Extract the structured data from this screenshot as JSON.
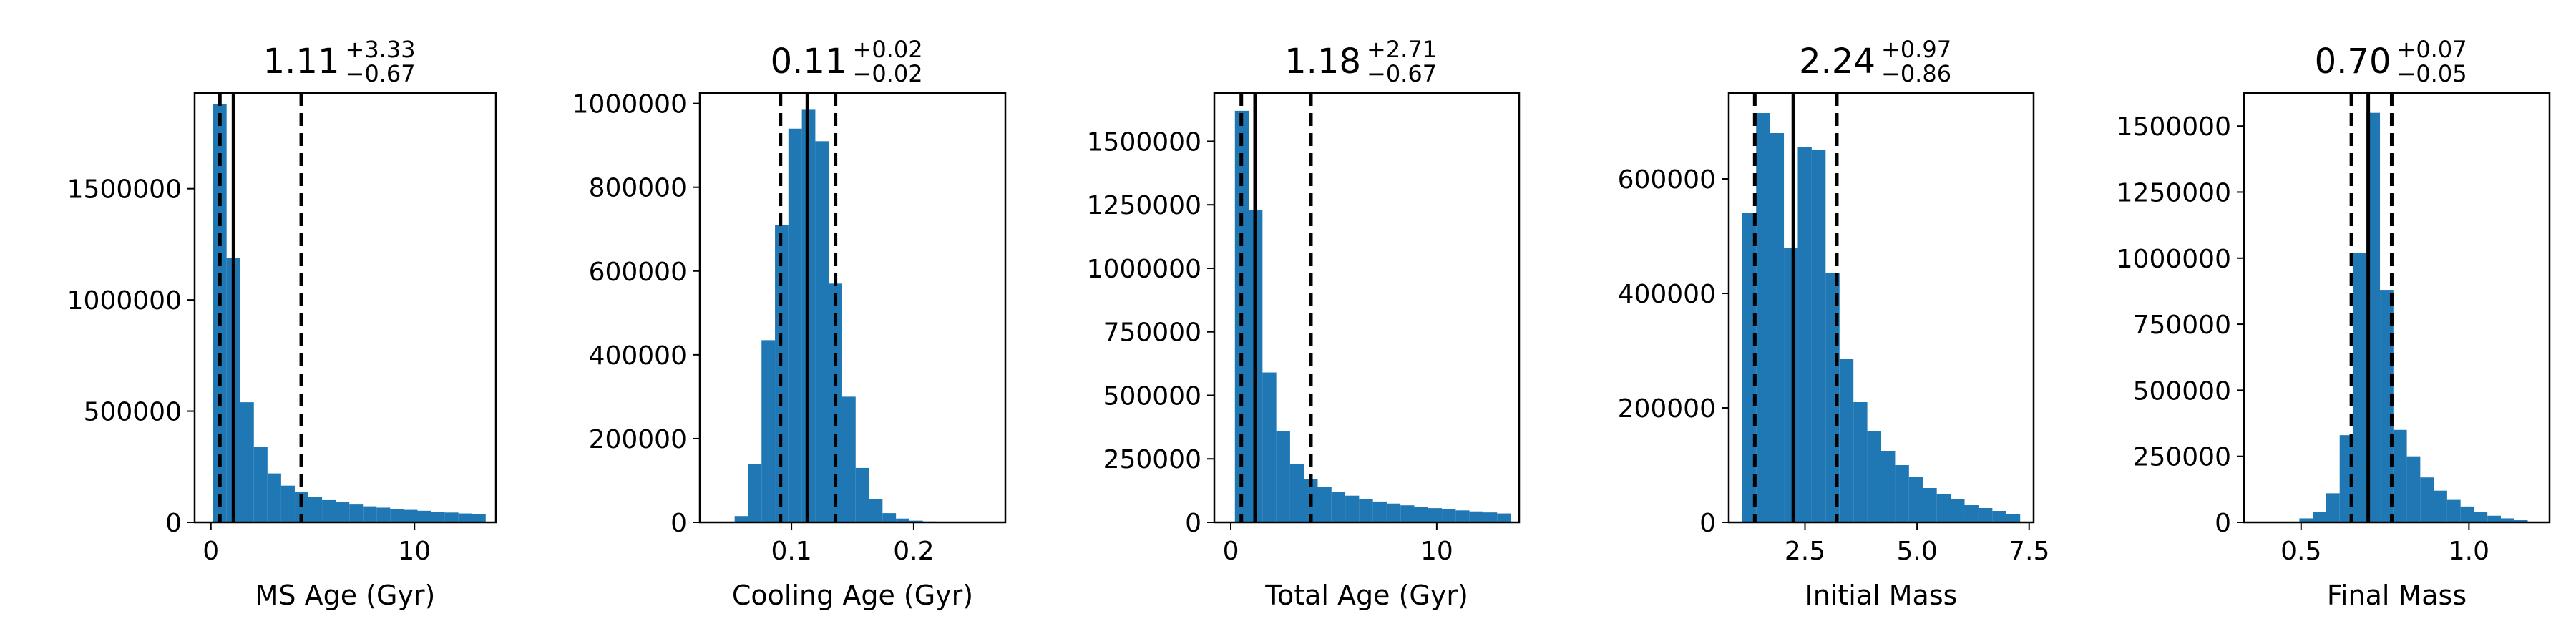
{
  "colors": {
    "bars": "#1f77b4",
    "median_line": "#000000",
    "quantile_line": "#000000"
  },
  "chart_data": [
    {
      "type": "bar",
      "title": {
        "value": "1.11",
        "upper": "+3.33",
        "lower": "−0.67"
      },
      "xlabel": "MS Age (Gyr)",
      "xlim": [
        -0.8,
        14
      ],
      "ylim": [
        0,
        1930000
      ],
      "xticks": [
        {
          "value": 0,
          "label": "0"
        },
        {
          "value": 10,
          "label": "10"
        }
      ],
      "yticks": [
        {
          "value": 0,
          "label": "0"
        },
        {
          "value": 500000,
          "label": "500000"
        },
        {
          "value": 1000000,
          "label": "1000000"
        },
        {
          "value": 1500000,
          "label": "1500000"
        }
      ],
      "bin_edges": [
        0.1,
        0.77,
        1.44,
        2.11,
        2.78,
        3.45,
        4.12,
        4.79,
        5.46,
        6.13,
        6.8,
        7.47,
        8.14,
        8.81,
        9.48,
        10.15,
        10.82,
        11.49,
        12.16,
        12.83,
        13.5
      ],
      "counts": [
        1880000,
        1190000,
        540000,
        340000,
        220000,
        165000,
        135000,
        115000,
        100000,
        90000,
        80000,
        72000,
        66000,
        60000,
        56000,
        52000,
        48000,
        44000,
        40000,
        36000
      ],
      "median": 1.11,
      "quantiles": [
        0.44,
        4.44
      ]
    },
    {
      "type": "bar",
      "title": {
        "value": "0.11",
        "upper": "+0.02",
        "lower": "−0.02"
      },
      "xlabel": "Cooling Age (Gyr)",
      "xlim": [
        0.025,
        0.275
      ],
      "ylim": [
        0,
        1025000
      ],
      "xticks": [
        {
          "value": 0.1,
          "label": "0.1"
        },
        {
          "value": 0.2,
          "label": "0.2"
        }
      ],
      "yticks": [
        {
          "value": 0,
          "label": "0"
        },
        {
          "value": 200000,
          "label": "200000"
        },
        {
          "value": 400000,
          "label": "400000"
        },
        {
          "value": 600000,
          "label": "600000"
        },
        {
          "value": 800000,
          "label": "800000"
        },
        {
          "value": 1000000,
          "label": "1000000"
        }
      ],
      "bin_edges": [
        0.0535,
        0.0645,
        0.0755,
        0.0865,
        0.0975,
        0.1085,
        0.1195,
        0.1305,
        0.1415,
        0.1525,
        0.1635,
        0.1745,
        0.1855,
        0.1965,
        0.2075,
        0.2185,
        0.2295,
        0.2405,
        0.2515,
        0.2625
      ],
      "counts": [
        15000,
        140000,
        435000,
        710000,
        940000,
        985000,
        910000,
        570000,
        300000,
        130000,
        55000,
        22000,
        9000,
        4000,
        2000,
        1000,
        500,
        300,
        200
      ],
      "median": 0.113,
      "quantiles": [
        0.091,
        0.136
      ]
    },
    {
      "type": "bar",
      "title": {
        "value": "1.18",
        "upper": "+2.71",
        "lower": "−0.67"
      },
      "xlabel": "Total Age (Gyr)",
      "xlim": [
        -0.8,
        14
      ],
      "ylim": [
        0,
        1690000
      ],
      "xticks": [
        {
          "value": 0,
          "label": "0"
        },
        {
          "value": 10,
          "label": "10"
        }
      ],
      "yticks": [
        {
          "value": 0,
          "label": "0"
        },
        {
          "value": 250000,
          "label": "250000"
        },
        {
          "value": 500000,
          "label": "500000"
        },
        {
          "value": 750000,
          "label": "750000"
        },
        {
          "value": 1000000,
          "label": "1000000"
        },
        {
          "value": 1250000,
          "label": "1250000"
        },
        {
          "value": 1500000,
          "label": "1500000"
        }
      ],
      "bin_edges": [
        0.2,
        0.87,
        1.54,
        2.21,
        2.88,
        3.55,
        4.22,
        4.89,
        5.56,
        6.23,
        6.9,
        7.57,
        8.24,
        8.91,
        9.58,
        10.25,
        10.92,
        11.59,
        12.26,
        12.93,
        13.6
      ],
      "counts": [
        1620000,
        1230000,
        590000,
        360000,
        230000,
        170000,
        140000,
        120000,
        105000,
        92000,
        82000,
        74000,
        67000,
        61000,
        56000,
        52000,
        47000,
        43000,
        39000,
        35000
      ],
      "median": 1.18,
      "quantiles": [
        0.51,
        3.89
      ]
    },
    {
      "type": "bar",
      "title": {
        "value": "2.24",
        "upper": "+0.97",
        "lower": "−0.86"
      },
      "xlabel": "Initial Mass",
      "xlim": [
        0.8,
        7.6
      ],
      "ylim": [
        0,
        750000
      ],
      "xticks": [
        {
          "value": 2.5,
          "label": "2.5"
        },
        {
          "value": 5.0,
          "label": "5.0"
        },
        {
          "value": 7.5,
          "label": "7.5"
        }
      ],
      "yticks": [
        {
          "value": 0,
          "label": "0"
        },
        {
          "value": 200000,
          "label": "200000"
        },
        {
          "value": 400000,
          "label": "400000"
        },
        {
          "value": 600000,
          "label": "600000"
        }
      ],
      "bin_edges": [
        1.1,
        1.41,
        1.72,
        2.03,
        2.34,
        2.65,
        2.96,
        3.27,
        3.58,
        3.89,
        4.2,
        4.51,
        4.82,
        5.13,
        5.44,
        5.75,
        6.06,
        6.37,
        6.68,
        6.99,
        7.3
      ],
      "counts": [
        540000,
        715000,
        680000,
        480000,
        655000,
        650000,
        435000,
        285000,
        210000,
        160000,
        125000,
        100000,
        80000,
        60000,
        50000,
        40000,
        30000,
        25000,
        20000,
        15000
      ],
      "median": 2.24,
      "quantiles": [
        1.38,
        3.21
      ]
    },
    {
      "type": "bar",
      "title": {
        "value": "0.70",
        "upper": "+0.07",
        "lower": "−0.05"
      },
      "xlabel": "Final Mass",
      "xlim": [
        0.33,
        1.24
      ],
      "ylim": [
        0,
        1625000
      ],
      "xticks": [
        {
          "value": 0.5,
          "label": "0.5"
        },
        {
          "value": 1.0,
          "label": "1.0"
        }
      ],
      "yticks": [
        {
          "value": 0,
          "label": "0"
        },
        {
          "value": 250000,
          "label": "250000"
        },
        {
          "value": 500000,
          "label": "500000"
        },
        {
          "value": 750000,
          "label": "750000"
        },
        {
          "value": 1000000,
          "label": "1000000"
        },
        {
          "value": 1250000,
          "label": "1250000"
        },
        {
          "value": 1500000,
          "label": "1500000"
        }
      ],
      "bin_edges": [
        0.495,
        0.535,
        0.575,
        0.615,
        0.655,
        0.695,
        0.735,
        0.775,
        0.815,
        0.855,
        0.895,
        0.935,
        0.975,
        1.015,
        1.055,
        1.095,
        1.135,
        1.175
      ],
      "counts": [
        15000,
        40000,
        110000,
        330000,
        1020000,
        1550000,
        880000,
        350000,
        250000,
        170000,
        120000,
        85000,
        60000,
        40000,
        25000,
        15000,
        8000
      ],
      "median": 0.7,
      "quantiles": [
        0.65,
        0.77
      ]
    }
  ]
}
